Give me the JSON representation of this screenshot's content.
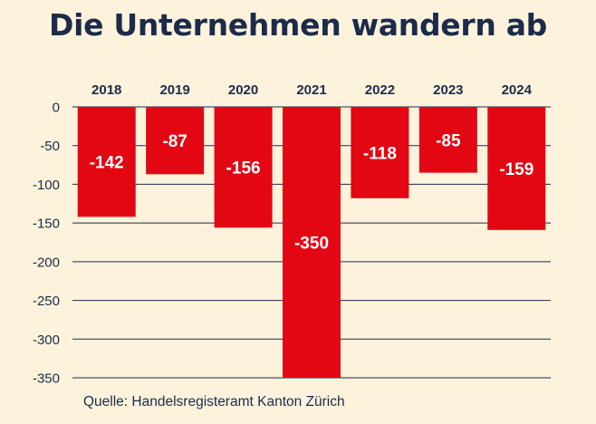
{
  "title": "Die Unternehmen wandern ab",
  "source": "Quelle: Handelsregisteramt Kanton Zürich",
  "colors": {
    "background": "#fdf3dc",
    "bar": "#e30613",
    "text": "#1c2b4a",
    "label": "#ffffff"
  },
  "chart_data": {
    "type": "bar",
    "title": "Die Unternehmen wandern ab",
    "xlabel": "",
    "ylabel": "",
    "categories": [
      "2018",
      "2019",
      "2020",
      "2021",
      "2022",
      "2023",
      "2024"
    ],
    "values": [
      -142,
      -87,
      -156,
      -350,
      -118,
      -85,
      -159
    ],
    "data_labels": [
      "-142",
      "-87",
      "-156",
      "-350",
      "-118",
      "-85",
      "-159"
    ],
    "ylim": [
      -350,
      0
    ],
    "yticks": [
      0,
      -50,
      -100,
      -150,
      -200,
      -250,
      -300,
      -350
    ],
    "category_axis": "top",
    "grid": true,
    "legend": "none"
  }
}
